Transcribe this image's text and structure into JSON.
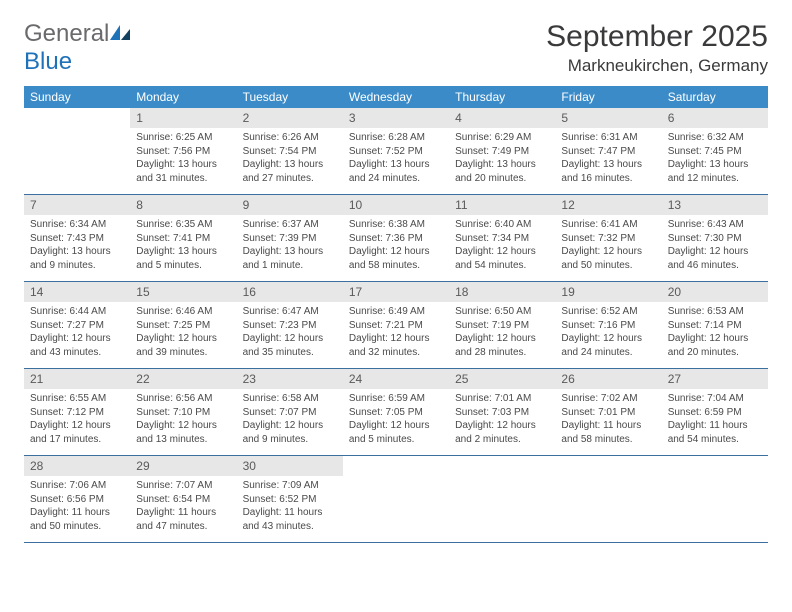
{
  "logo": {
    "text1": "General",
    "text2": "Blue"
  },
  "title": "September 2025",
  "location": "Markneukirchen, Germany",
  "dows": [
    "Sunday",
    "Monday",
    "Tuesday",
    "Wednesday",
    "Thursday",
    "Friday",
    "Saturday"
  ],
  "colors": {
    "header_bg": "#3b8bc8",
    "header_text": "#ffffff",
    "daynum_bg": "#e7e7e7",
    "rule": "#3b6fa0",
    "logo_gray": "#6a6a6c",
    "logo_blue": "#1f71b8"
  },
  "weeks": [
    [
      {
        "n": "",
        "sr": "",
        "ss": "",
        "dl": ""
      },
      {
        "n": "1",
        "sr": "6:25 AM",
        "ss": "7:56 PM",
        "dl": "13 hours and 31 minutes."
      },
      {
        "n": "2",
        "sr": "6:26 AM",
        "ss": "7:54 PM",
        "dl": "13 hours and 27 minutes."
      },
      {
        "n": "3",
        "sr": "6:28 AM",
        "ss": "7:52 PM",
        "dl": "13 hours and 24 minutes."
      },
      {
        "n": "4",
        "sr": "6:29 AM",
        "ss": "7:49 PM",
        "dl": "13 hours and 20 minutes."
      },
      {
        "n": "5",
        "sr": "6:31 AM",
        "ss": "7:47 PM",
        "dl": "13 hours and 16 minutes."
      },
      {
        "n": "6",
        "sr": "6:32 AM",
        "ss": "7:45 PM",
        "dl": "13 hours and 12 minutes."
      }
    ],
    [
      {
        "n": "7",
        "sr": "6:34 AM",
        "ss": "7:43 PM",
        "dl": "13 hours and 9 minutes."
      },
      {
        "n": "8",
        "sr": "6:35 AM",
        "ss": "7:41 PM",
        "dl": "13 hours and 5 minutes."
      },
      {
        "n": "9",
        "sr": "6:37 AM",
        "ss": "7:39 PM",
        "dl": "13 hours and 1 minute."
      },
      {
        "n": "10",
        "sr": "6:38 AM",
        "ss": "7:36 PM",
        "dl": "12 hours and 58 minutes."
      },
      {
        "n": "11",
        "sr": "6:40 AM",
        "ss": "7:34 PM",
        "dl": "12 hours and 54 minutes."
      },
      {
        "n": "12",
        "sr": "6:41 AM",
        "ss": "7:32 PM",
        "dl": "12 hours and 50 minutes."
      },
      {
        "n": "13",
        "sr": "6:43 AM",
        "ss": "7:30 PM",
        "dl": "12 hours and 46 minutes."
      }
    ],
    [
      {
        "n": "14",
        "sr": "6:44 AM",
        "ss": "7:27 PM",
        "dl": "12 hours and 43 minutes."
      },
      {
        "n": "15",
        "sr": "6:46 AM",
        "ss": "7:25 PM",
        "dl": "12 hours and 39 minutes."
      },
      {
        "n": "16",
        "sr": "6:47 AM",
        "ss": "7:23 PM",
        "dl": "12 hours and 35 minutes."
      },
      {
        "n": "17",
        "sr": "6:49 AM",
        "ss": "7:21 PM",
        "dl": "12 hours and 32 minutes."
      },
      {
        "n": "18",
        "sr": "6:50 AM",
        "ss": "7:19 PM",
        "dl": "12 hours and 28 minutes."
      },
      {
        "n": "19",
        "sr": "6:52 AM",
        "ss": "7:16 PM",
        "dl": "12 hours and 24 minutes."
      },
      {
        "n": "20",
        "sr": "6:53 AM",
        "ss": "7:14 PM",
        "dl": "12 hours and 20 minutes."
      }
    ],
    [
      {
        "n": "21",
        "sr": "6:55 AM",
        "ss": "7:12 PM",
        "dl": "12 hours and 17 minutes."
      },
      {
        "n": "22",
        "sr": "6:56 AM",
        "ss": "7:10 PM",
        "dl": "12 hours and 13 minutes."
      },
      {
        "n": "23",
        "sr": "6:58 AM",
        "ss": "7:07 PM",
        "dl": "12 hours and 9 minutes."
      },
      {
        "n": "24",
        "sr": "6:59 AM",
        "ss": "7:05 PM",
        "dl": "12 hours and 5 minutes."
      },
      {
        "n": "25",
        "sr": "7:01 AM",
        "ss": "7:03 PM",
        "dl": "12 hours and 2 minutes."
      },
      {
        "n": "26",
        "sr": "7:02 AM",
        "ss": "7:01 PM",
        "dl": "11 hours and 58 minutes."
      },
      {
        "n": "27",
        "sr": "7:04 AM",
        "ss": "6:59 PM",
        "dl": "11 hours and 54 minutes."
      }
    ],
    [
      {
        "n": "28",
        "sr": "7:06 AM",
        "ss": "6:56 PM",
        "dl": "11 hours and 50 minutes."
      },
      {
        "n": "29",
        "sr": "7:07 AM",
        "ss": "6:54 PM",
        "dl": "11 hours and 47 minutes."
      },
      {
        "n": "30",
        "sr": "7:09 AM",
        "ss": "6:52 PM",
        "dl": "11 hours and 43 minutes."
      },
      {
        "n": "",
        "sr": "",
        "ss": "",
        "dl": ""
      },
      {
        "n": "",
        "sr": "",
        "ss": "",
        "dl": ""
      },
      {
        "n": "",
        "sr": "",
        "ss": "",
        "dl": ""
      },
      {
        "n": "",
        "sr": "",
        "ss": "",
        "dl": ""
      }
    ]
  ]
}
